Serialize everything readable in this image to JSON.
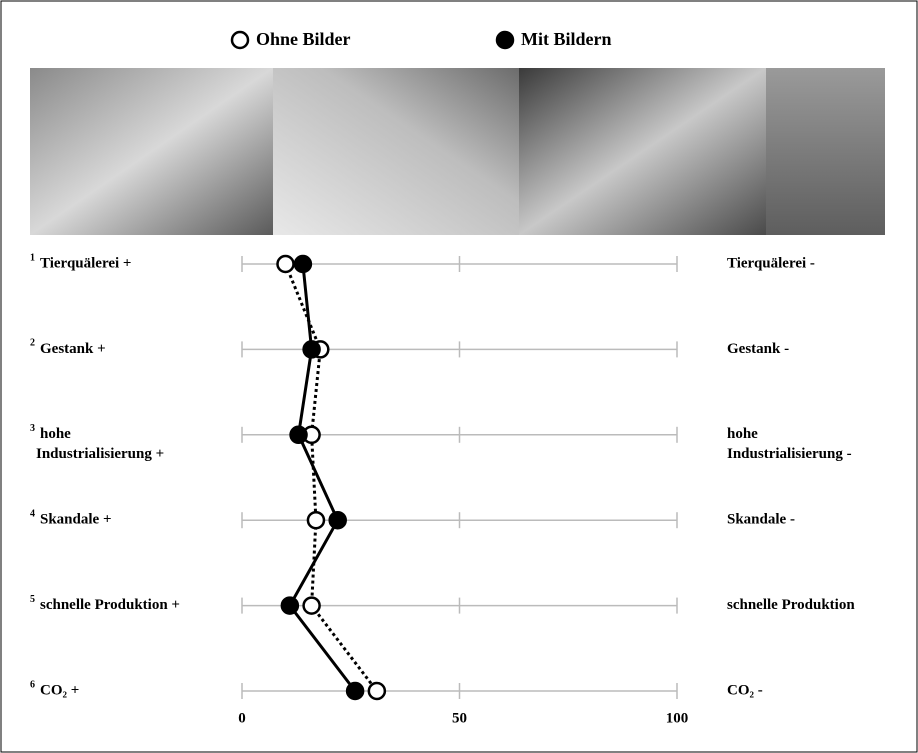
{
  "chart_data": {
    "type": "line",
    "orientation": "horizontal",
    "numbers": [
      "1",
      "2",
      "3",
      "4",
      "5",
      "6"
    ],
    "left_labels": [
      [
        "Tierquälerei +"
      ],
      [
        "Gestank +"
      ],
      [
        "hohe",
        "Industrialisierung +"
      ],
      [
        "Skandale +"
      ],
      [
        "schnelle Produktion +"
      ],
      [
        "CO₂ +"
      ]
    ],
    "right_labels": [
      [
        "Tierquälerei -"
      ],
      [
        "Gestank -"
      ],
      [
        "hohe",
        "Industrialisierung -"
      ],
      [
        "Skandale -"
      ],
      [
        "schnelle Produktion"
      ],
      [
        "CO₂ -"
      ]
    ],
    "series": [
      {
        "name": "Ohne Bilder",
        "color": "#000000",
        "marker": "open",
        "line_style": "dotted",
        "values": [
          10,
          18,
          16,
          17,
          16,
          31
        ]
      },
      {
        "name": "Mit Bildern",
        "color": "#000000",
        "marker": "filled",
        "line_style": "solid",
        "values": [
          14,
          16,
          13,
          22,
          11,
          26
        ]
      }
    ],
    "xlim": [
      0,
      100
    ],
    "xticks": [
      0,
      50,
      100
    ],
    "grid": true
  }
}
